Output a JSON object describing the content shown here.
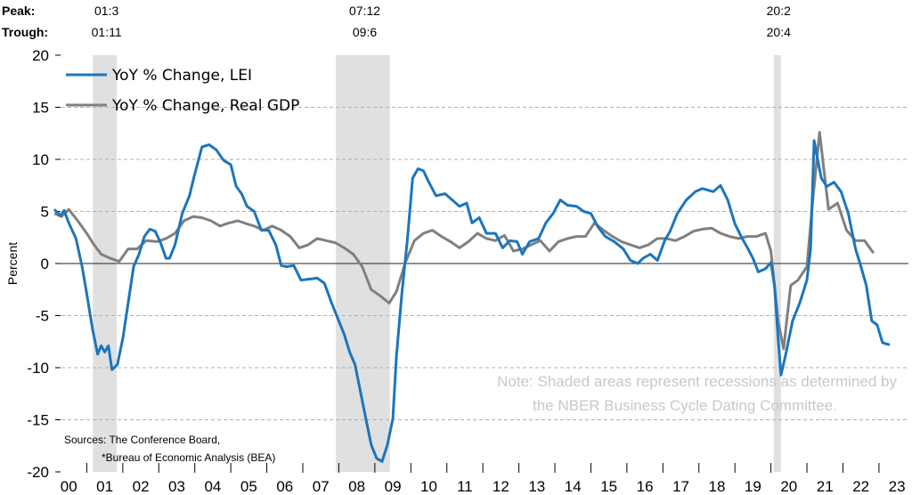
{
  "chart_data": {
    "type": "line",
    "ylabel": "Percent",
    "ylim": [
      -20,
      20
    ],
    "yticks": [
      20,
      15,
      10,
      5,
      0,
      -5,
      -10,
      -15,
      -20
    ],
    "xlim": [
      2000,
      2024
    ],
    "xtick_labels": [
      "00",
      "01",
      "02",
      "03",
      "04",
      "05",
      "06",
      "07",
      "08",
      "09",
      "10",
      "11",
      "12",
      "13",
      "14",
      "15",
      "16",
      "17",
      "18",
      "19",
      "20",
      "21",
      "22",
      "23"
    ],
    "grid": "horizontal dashed",
    "legend_placement": "top-left",
    "header": {
      "peak_label": "Peak:",
      "trough_label": "Trough:"
    },
    "recessions": [
      {
        "peak": "01:3",
        "trough": "01:11",
        "start": 2001.17,
        "end": 2001.83
      },
      {
        "peak": "07:12",
        "trough": "09:6",
        "start": 2007.92,
        "end": 2009.42
      },
      {
        "peak": "20:2",
        "trough": "20:4",
        "start": 2020.08,
        "end": 2020.25
      }
    ],
    "note": [
      "Note: Shaded areas represent recessions as determined by",
      "the NBER Business Cycle Dating Committee."
    ],
    "sources": [
      "Sources: The Conference Board,",
      "*Bureau of Economic Analysis (BEA)"
    ],
    "colors": {
      "lei": "#1f77b4",
      "gdp": "#7f7f7f",
      "recession": "#e0e0e0"
    },
    "series": [
      {
        "name": "YoY % Change, LEI",
        "color": "#1c75bc",
        "x": [
          2000.1,
          2000.27,
          2000.37,
          2000.5,
          2000.7,
          2000.87,
          2001.0,
          2001.16,
          2001.3,
          2001.4,
          2001.5,
          2001.6,
          2001.7,
          2001.85,
          2002.0,
          2002.15,
          2002.3,
          2002.45,
          2002.6,
          2002.75,
          2002.9,
          2003.05,
          2003.2,
          2003.3,
          2003.45,
          2003.65,
          2003.85,
          2004.0,
          2004.2,
          2004.4,
          2004.6,
          2004.8,
          2005.0,
          2005.15,
          2005.3,
          2005.45,
          2005.65,
          2005.85,
          2006.05,
          2006.25,
          2006.4,
          2006.55,
          2006.75,
          2006.95,
          2007.15,
          2007.4,
          2007.6,
          2007.8,
          2008.0,
          2008.15,
          2008.3,
          2008.45,
          2008.6,
          2008.75,
          2008.9,
          2009.05,
          2009.2,
          2009.35,
          2009.5,
          2009.6,
          2009.75,
          2009.9,
          2010.05,
          2010.2,
          2010.35,
          2010.5,
          2010.7,
          2010.95,
          2011.15,
          2011.35,
          2011.55,
          2011.7,
          2011.9,
          2012.1,
          2012.35,
          2012.55,
          2012.75,
          2012.95,
          2013.1,
          2013.3,
          2013.55,
          2013.75,
          2013.95,
          2014.15,
          2014.35,
          2014.6,
          2014.8,
          2015.0,
          2015.2,
          2015.4,
          2015.65,
          2015.9,
          2016.1,
          2016.3,
          2016.45,
          2016.65,
          2016.85,
          2017.05,
          2017.2,
          2017.4,
          2017.65,
          2017.9,
          2018.1,
          2018.4,
          2018.6,
          2018.8,
          2019.0,
          2019.2,
          2019.35,
          2019.5,
          2019.65,
          2019.85,
          2020.0,
          2020.1,
          2020.2,
          2020.28,
          2020.4,
          2020.6,
          2020.8,
          2021.0,
          2021.1,
          2021.2,
          2021.3,
          2021.4,
          2021.55,
          2021.75,
          2021.95,
          2022.15,
          2022.35,
          2022.5,
          2022.65,
          2022.8,
          2022.95,
          2023.1,
          2023.3
        ],
        "values": [
          5.2,
          4.6,
          5.1,
          3.9,
          2.4,
          -0.3,
          -2.9,
          -6.3,
          -8.7,
          -7.9,
          -8.5,
          -7.9,
          -10.2,
          -9.7,
          -7.2,
          -3.8,
          -0.3,
          0.9,
          2.6,
          3.3,
          3.1,
          2.0,
          0.5,
          0.5,
          1.8,
          4.8,
          6.5,
          8.6,
          11.2,
          11.4,
          10.9,
          9.9,
          9.5,
          7.4,
          6.7,
          5.5,
          5.0,
          3.2,
          3.2,
          1.8,
          -0.2,
          -0.3,
          -0.2,
          -1.6,
          -1.5,
          -1.4,
          -1.9,
          -3.8,
          -5.5,
          -6.8,
          -8.5,
          -9.7,
          -12.3,
          -14.9,
          -17.4,
          -18.7,
          -19.0,
          -17.4,
          -14.9,
          -8.9,
          -2.9,
          2.2,
          8.2,
          9.1,
          8.9,
          7.8,
          6.5,
          6.7,
          6.1,
          5.5,
          5.8,
          3.9,
          4.4,
          2.9,
          2.9,
          1.5,
          2.2,
          2.1,
          0.9,
          2.1,
          2.4,
          3.9,
          4.8,
          6.1,
          5.6,
          5.5,
          5.0,
          4.8,
          3.5,
          2.6,
          2.1,
          1.4,
          0.3,
          0.0,
          0.5,
          0.9,
          0.3,
          2.2,
          3.1,
          4.8,
          6.1,
          6.9,
          7.2,
          6.9,
          7.5,
          6.1,
          3.8,
          2.4,
          1.5,
          0.5,
          -0.8,
          -0.5,
          0.1,
          -2.1,
          -7.2,
          -10.7,
          -8.9,
          -5.5,
          -3.8,
          -1.6,
          1.4,
          11.8,
          9.9,
          8.2,
          7.4,
          7.8,
          6.9,
          4.8,
          1.4,
          -0.3,
          -2.1,
          -5.5,
          -5.9,
          -7.6,
          -7.8
        ]
      },
      {
        "name": "YoY % Change, Real GDP",
        "color": "#808080",
        "x": [
          2000.1,
          2000.3,
          2000.5,
          2000.75,
          2001.0,
          2001.2,
          2001.4,
          2001.65,
          2001.9,
          2002.15,
          2002.4,
          2002.65,
          2002.95,
          2003.2,
          2003.45,
          2003.7,
          2003.95,
          2004.2,
          2004.45,
          2004.7,
          2004.95,
          2005.2,
          2005.45,
          2005.65,
          2005.9,
          2006.15,
          2006.4,
          2006.65,
          2006.9,
          2007.15,
          2007.4,
          2007.65,
          2007.9,
          2008.15,
          2008.4,
          2008.65,
          2008.9,
          2009.15,
          2009.4,
          2009.6,
          2009.85,
          2010.1,
          2010.35,
          2010.6,
          2010.85,
          2011.1,
          2011.35,
          2011.6,
          2011.85,
          2012.1,
          2012.35,
          2012.6,
          2012.85,
          2013.1,
          2013.35,
          2013.6,
          2013.85,
          2014.1,
          2014.35,
          2014.6,
          2014.85,
          2015.1,
          2015.35,
          2015.6,
          2015.85,
          2016.1,
          2016.35,
          2016.6,
          2016.85,
          2017.1,
          2017.35,
          2017.6,
          2017.85,
          2018.1,
          2018.35,
          2018.6,
          2018.85,
          2019.1,
          2019.35,
          2019.6,
          2019.85,
          2020.0,
          2020.2,
          2020.35,
          2020.55,
          2020.75,
          2021.0,
          2021.15,
          2021.35,
          2021.6,
          2021.85,
          2022.1,
          2022.35,
          2022.6,
          2022.85
        ],
        "values": [
          4.8,
          4.5,
          5.2,
          4.1,
          2.9,
          1.8,
          0.9,
          0.5,
          0.2,
          1.4,
          1.4,
          2.2,
          2.1,
          2.4,
          2.9,
          4.1,
          4.5,
          4.4,
          4.1,
          3.6,
          3.9,
          4.1,
          3.8,
          3.6,
          3.2,
          3.6,
          3.2,
          2.6,
          1.5,
          1.8,
          2.4,
          2.2,
          2.0,
          1.5,
          0.9,
          -0.3,
          -2.5,
          -3.1,
          -3.8,
          -2.7,
          0.1,
          2.2,
          2.9,
          3.2,
          2.6,
          2.1,
          1.5,
          2.1,
          2.9,
          2.4,
          2.2,
          2.7,
          1.2,
          1.4,
          1.8,
          2.2,
          1.2,
          2.1,
          2.4,
          2.6,
          2.6,
          3.9,
          3.2,
          2.6,
          2.1,
          1.8,
          1.5,
          1.8,
          2.4,
          2.4,
          2.2,
          2.6,
          3.1,
          3.3,
          3.4,
          2.9,
          2.6,
          2.4,
          2.6,
          2.6,
          2.9,
          1.2,
          -5.5,
          -8.2,
          -2.1,
          -1.6,
          -0.3,
          5.6,
          12.6,
          5.2,
          5.8,
          3.2,
          2.2,
          2.2,
          1.0
        ]
      }
    ]
  }
}
